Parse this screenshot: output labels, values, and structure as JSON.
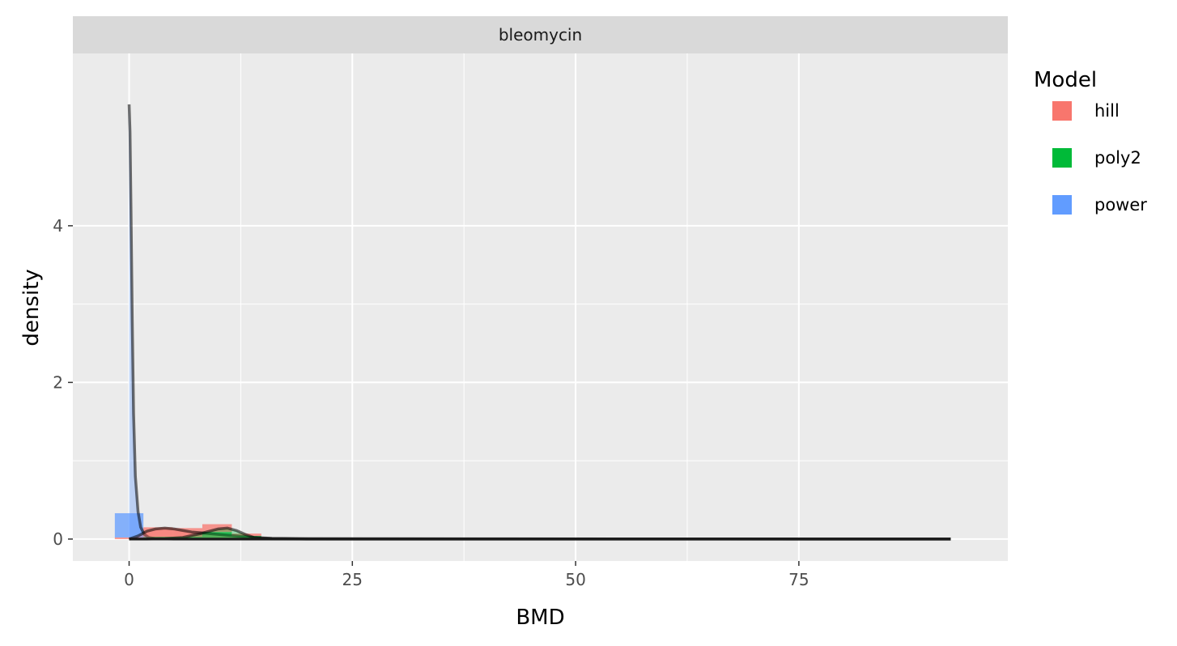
{
  "chart_data": {
    "type": "area",
    "panel_title": "bleomycin",
    "xlabel": "BMD",
    "ylabel": "density",
    "xlim": [
      -6.3,
      98.4
    ],
    "ylim": [
      -0.28,
      6.2
    ],
    "x_ticks": [
      0,
      25,
      50,
      75
    ],
    "y_ticks": [
      0,
      2,
      4
    ],
    "x_tick_labels": [
      "0",
      "25",
      "50",
      "75"
    ],
    "y_tick_labels": [
      "0",
      "2",
      "4"
    ],
    "grid": true,
    "legend": {
      "title": "Model",
      "position": "right",
      "entries": [
        {
          "label": "hill",
          "color": "#F8766D"
        },
        {
          "label": "poly2",
          "color": "#00BA38"
        },
        {
          "label": "power",
          "color": "#619CFF"
        }
      ]
    },
    "histogram": {
      "bin_width": 3.3,
      "bars": [
        {
          "x0": -1.6,
          "x1": 1.6,
          "poly2": 0.0,
          "hill": 0.02,
          "power": 0.31
        },
        {
          "x0": 1.6,
          "x1": 4.9,
          "poly2": 0.03,
          "hill": 0.12,
          "power": 0.0
        },
        {
          "x0": 4.9,
          "x1": 8.2,
          "poly2": 0.03,
          "hill": 0.11,
          "power": 0.0
        },
        {
          "x0": 8.2,
          "x1": 11.5,
          "poly2": 0.09,
          "hill": 0.1,
          "power": 0.0
        },
        {
          "x0": 11.5,
          "x1": 14.8,
          "poly2": 0.04,
          "hill": 0.03,
          "power": 0.0
        },
        {
          "x0": 14.8,
          "x1": 92.0,
          "poly2": 0.01,
          "hill": 0.0,
          "power": 0.0
        }
      ]
    },
    "density_series": [
      {
        "model": "power",
        "x": [
          0,
          0.1,
          0.2,
          0.35,
          0.5,
          0.7,
          1.0,
          1.3,
          1.7,
          2.2,
          3.0,
          5.0,
          20,
          92
        ],
        "y": [
          5.55,
          5.2,
          4.3,
          2.8,
          1.6,
          0.8,
          0.35,
          0.15,
          0.06,
          0.02,
          0.005,
          0.0,
          0.0,
          0.0
        ]
      },
      {
        "model": "hill",
        "x": [
          0,
          1,
          2,
          3,
          4,
          5,
          6,
          7,
          8,
          9,
          10,
          11,
          12,
          14,
          16,
          20,
          40,
          92
        ],
        "y": [
          0.0,
          0.04,
          0.1,
          0.13,
          0.14,
          0.13,
          0.11,
          0.09,
          0.08,
          0.07,
          0.06,
          0.05,
          0.04,
          0.02,
          0.01,
          0.006,
          0.003,
          0.0
        ]
      },
      {
        "model": "poly2",
        "x": [
          0,
          2,
          4,
          6,
          8,
          9,
          10,
          11,
          12,
          13,
          14,
          16,
          20,
          92
        ],
        "y": [
          0.0,
          0.0,
          0.005,
          0.02,
          0.07,
          0.1,
          0.13,
          0.14,
          0.11,
          0.06,
          0.02,
          0.005,
          0.0,
          0.0
        ]
      }
    ],
    "density_line_color": "#000000"
  }
}
